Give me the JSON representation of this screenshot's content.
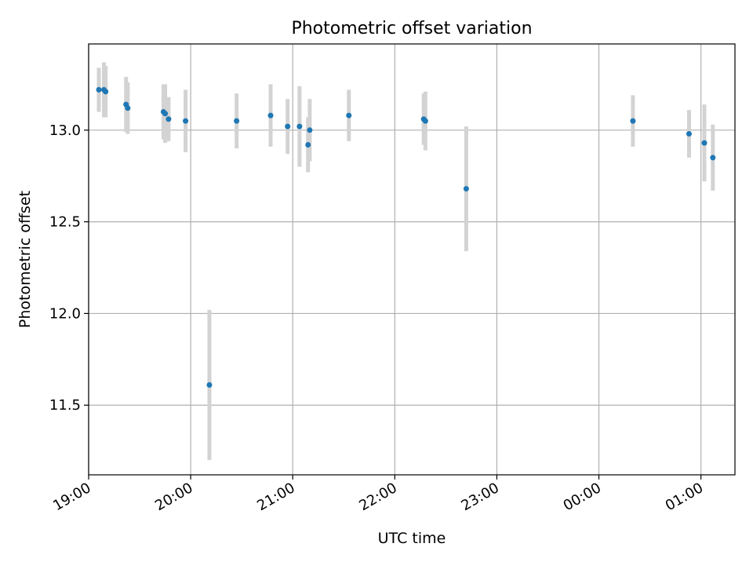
{
  "chart_data": {
    "type": "scatter",
    "title": "Photometric offset variation",
    "xlabel": "UTC time",
    "ylabel": "Photometric offset",
    "x_axis_type": "time",
    "xlim": [
      "19:00",
      "25:20"
    ],
    "ylim": [
      11.12,
      13.47
    ],
    "grid": true,
    "x_ticks": [
      {
        "value": "19:00",
        "label": "19:00"
      },
      {
        "value": "20:00",
        "label": "20:00"
      },
      {
        "value": "21:00",
        "label": "21:00"
      },
      {
        "value": "22:00",
        "label": "22:00"
      },
      {
        "value": "23:00",
        "label": "23:00"
      },
      {
        "value": "24:00",
        "label": "00:00"
      },
      {
        "value": "25:00",
        "label": "01:00"
      }
    ],
    "y_ticks": [
      {
        "value": 11.5,
        "label": "11.5"
      },
      {
        "value": 12.0,
        "label": "12.0"
      },
      {
        "value": 12.5,
        "label": "12.5"
      },
      {
        "value": 13.0,
        "label": "13.0"
      }
    ],
    "marker_color": "#1f77b4",
    "errorbar_color": "#d3d3d3",
    "points": [
      {
        "t": "19:06",
        "y": 13.22,
        "err": 0.12
      },
      {
        "t": "19:09",
        "y": 13.22,
        "err": 0.15
      },
      {
        "t": "19:10",
        "y": 13.21,
        "err": 0.14
      },
      {
        "t": "19:22",
        "y": 13.14,
        "err": 0.15
      },
      {
        "t": "19:23",
        "y": 13.12,
        "err": 0.14
      },
      {
        "t": "19:44",
        "y": 13.1,
        "err": 0.15
      },
      {
        "t": "19:45",
        "y": 13.09,
        "err": 0.16
      },
      {
        "t": "19:47",
        "y": 13.06,
        "err": 0.12
      },
      {
        "t": "19:57",
        "y": 13.05,
        "err": 0.17
      },
      {
        "t": "20:11",
        "y": 11.61,
        "err": 0.41
      },
      {
        "t": "20:27",
        "y": 13.05,
        "err": 0.15
      },
      {
        "t": "20:47",
        "y": 13.08,
        "err": 0.17
      },
      {
        "t": "20:57",
        "y": 13.02,
        "err": 0.15
      },
      {
        "t": "21:04",
        "y": 13.02,
        "err": 0.22
      },
      {
        "t": "21:09",
        "y": 12.92,
        "err": 0.15
      },
      {
        "t": "21:10",
        "y": 13.0,
        "err": 0.17
      },
      {
        "t": "21:33",
        "y": 13.08,
        "err": 0.14
      },
      {
        "t": "22:17",
        "y": 13.06,
        "err": 0.14
      },
      {
        "t": "22:18",
        "y": 13.05,
        "err": 0.16
      },
      {
        "t": "22:42",
        "y": 12.68,
        "err": 0.34
      },
      {
        "t": "24:20",
        "y": 13.05,
        "err": 0.14
      },
      {
        "t": "24:53",
        "y": 12.98,
        "err": 0.13
      },
      {
        "t": "25:02",
        "y": 12.93,
        "err": 0.21
      },
      {
        "t": "25:07",
        "y": 12.85,
        "err": 0.18
      }
    ]
  }
}
